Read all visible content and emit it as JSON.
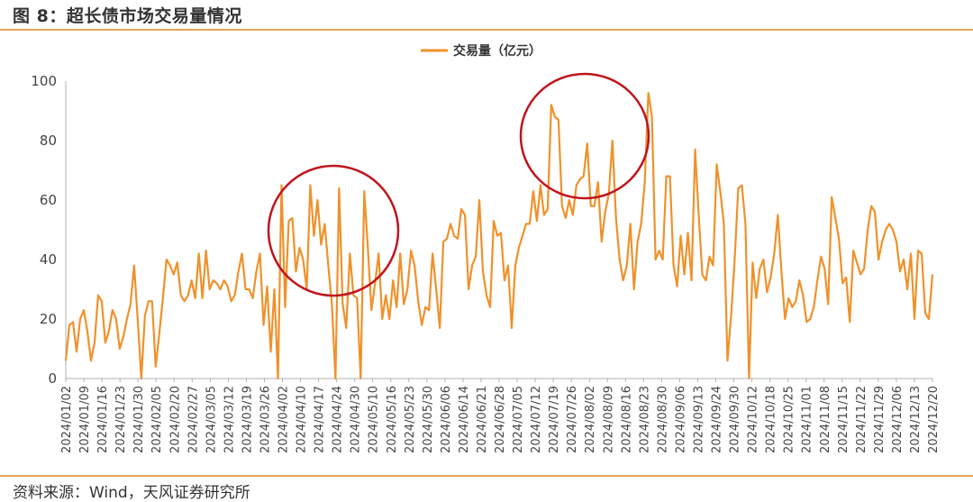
{
  "figure": {
    "title": "图 8：超长债市场交易量情况",
    "source": "资料来源：Wind，天风证券研究所"
  },
  "colors": {
    "line": "#f0912a",
    "circle": "#c0141c",
    "rule": "#e8a35a",
    "axis": "#b0b0b0"
  },
  "chart_data": {
    "type": "line",
    "title": "",
    "xlabel": "",
    "ylabel": "",
    "ylim": [
      0,
      100
    ],
    "yticks": [
      0,
      20,
      40,
      60,
      80,
      100
    ],
    "grid": false,
    "legend": {
      "placement": "top-center",
      "entries": [
        "交易量（亿元）"
      ]
    },
    "x_tick_labels": [
      "2024/01/02",
      "2024/01/09",
      "2024/01/16",
      "2024/01/23",
      "2024/01/30",
      "2024/02/05",
      "2024/02/20",
      "2024/02/27",
      "2024/03/05",
      "2024/03/12",
      "2024/03/19",
      "2024/03/26",
      "2024/04/02",
      "2024/04/10",
      "2024/04/17",
      "2024/04/24",
      "2024/04/30",
      "2024/05/10",
      "2024/05/16",
      "2024/05/23",
      "2024/05/30",
      "2024/06/06",
      "2024/06/14",
      "2024/06/21",
      "2024/06/28",
      "2024/07/05",
      "2024/07/12",
      "2024/07/19",
      "2024/07/26",
      "2024/08/02",
      "2024/08/09",
      "2024/08/16",
      "2024/08/23",
      "2024/08/30",
      "2024/09/06",
      "2024/09/13",
      "2024/09/24",
      "2024/09/30",
      "2024/10/12",
      "2024/10/18",
      "2024/10/25",
      "2024/11/01",
      "2024/11/08",
      "2024/11/15",
      "2024/11/22",
      "2024/11/29",
      "2024/12/06",
      "2024/12/13",
      "2024/12/20"
    ],
    "series": [
      {
        "name": "交易量（亿元）",
        "values": [
          6,
          18,
          19,
          9,
          20,
          23,
          16,
          6,
          12,
          28,
          26,
          12,
          16,
          23,
          20,
          10,
          14,
          20,
          25,
          38,
          20,
          0,
          21,
          26,
          26,
          4,
          15,
          27,
          40,
          38,
          35,
          39,
          28,
          26,
          28,
          33,
          27,
          42,
          27,
          43,
          30,
          33,
          32,
          30,
          33,
          31,
          26,
          28,
          36,
          42,
          30,
          30,
          27,
          36,
          42,
          18,
          31,
          9,
          30,
          0,
          65,
          24,
          53,
          54,
          36,
          44,
          40,
          30,
          65,
          48,
          60,
          45,
          52,
          38,
          25,
          0,
          64,
          25,
          17,
          42,
          28,
          27,
          0,
          63,
          44,
          23,
          32,
          42,
          20,
          28,
          20,
          33,
          24,
          42,
          25,
          30,
          43,
          38,
          26,
          18,
          24,
          23,
          42,
          30,
          17,
          46,
          47,
          52,
          48,
          47,
          57,
          55,
          30,
          38,
          41,
          60,
          36,
          28,
          24,
          53,
          48,
          49,
          33,
          38,
          17,
          38,
          44,
          48,
          52,
          52,
          63,
          53,
          65,
          55,
          57,
          92,
          88,
          87,
          58,
          54,
          60,
          55,
          65,
          67,
          68,
          79,
          58,
          58,
          66,
          46,
          56,
          62,
          80,
          54,
          40,
          33,
          38,
          52,
          30,
          46,
          52,
          66,
          96,
          88,
          40,
          43,
          40,
          68,
          68,
          38,
          31,
          48,
          35,
          49,
          33,
          77,
          55,
          35,
          33,
          41,
          38,
          72,
          63,
          52,
          6,
          21,
          40,
          64,
          65,
          52,
          0,
          39,
          27,
          37,
          40,
          29,
          34,
          42,
          55,
          36,
          20,
          27,
          24,
          26,
          33,
          28,
          19,
          20,
          24,
          33,
          41,
          37,
          25,
          61,
          54,
          47,
          32,
          34,
          19,
          43,
          39,
          35,
          37,
          50,
          58,
          56,
          40,
          46,
          50,
          52,
          50,
          46,
          36,
          40,
          30,
          42,
          20,
          43,
          42,
          22,
          20,
          35
        ]
      }
    ]
  }
}
